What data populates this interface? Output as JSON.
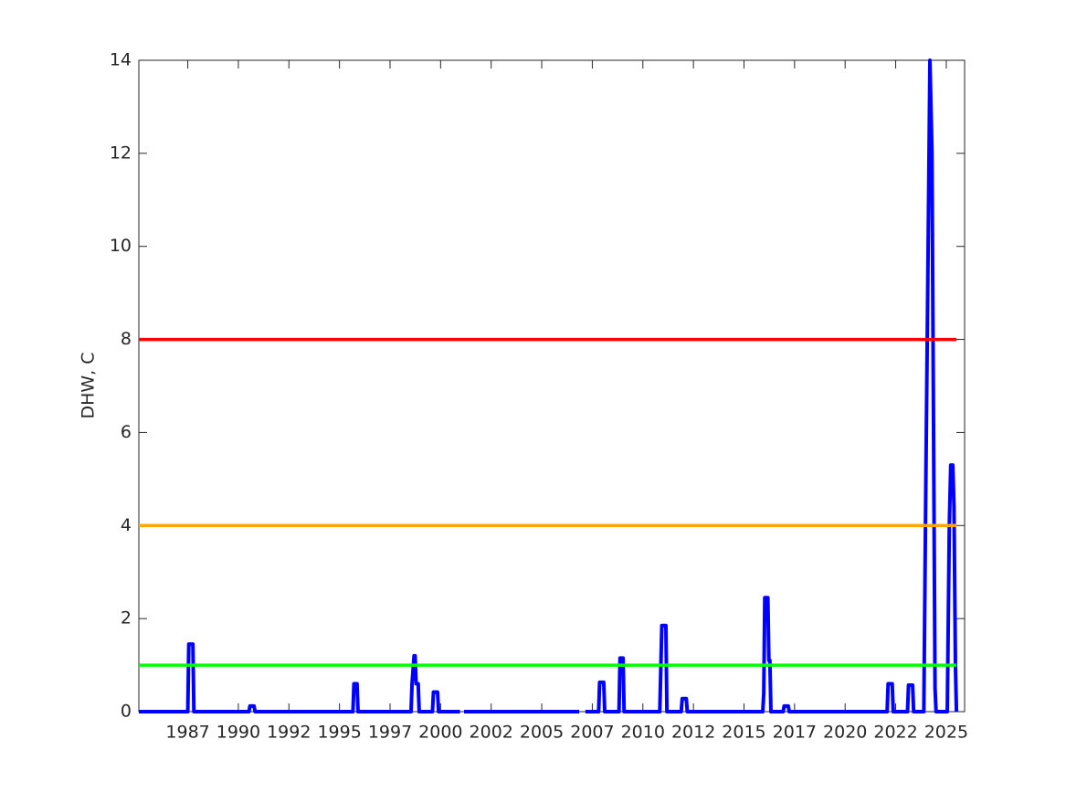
{
  "chart_data": {
    "type": "line",
    "ylabel": "DHW, C",
    "x": [
      1985.0,
      1987.4,
      1987.45,
      1987.65,
      1987.7,
      1990.4,
      1990.45,
      1990.65,
      1990.7,
      1995.5,
      1995.55,
      1995.7,
      1995.75,
      1998.35,
      1998.4,
      1998.5,
      1998.55,
      1998.6,
      1998.7,
      1998.75,
      1999.4,
      1999.45,
      1999.65,
      1999.7,
      2000.75,
      2000.85,
      2000.95,
      2006.6,
      2006.75,
      2006.9,
      2007.55,
      2007.6,
      2007.8,
      2007.85,
      2008.55,
      2008.6,
      2008.75,
      2008.8,
      2010.55,
      2010.65,
      2010.85,
      2010.9,
      2011.6,
      2011.65,
      2011.85,
      2011.9,
      2015.6,
      2015.65,
      2015.7,
      2015.85,
      2015.9,
      2015.95,
      2016.0,
      2016.6,
      2016.65,
      2016.85,
      2016.9,
      2021.7,
      2021.75,
      2021.95,
      2022.0,
      2022.7,
      2022.75,
      2022.95,
      2023.0,
      2023.5,
      2023.6,
      2023.8,
      2023.9,
      2024.05,
      2024.1,
      2024.65,
      2024.75,
      2024.82,
      2024.92,
      2024.98,
      2025.05,
      2025.1
    ],
    "series": [
      {
        "color": "#0000ff",
        "values": [
          0,
          0,
          1.45,
          1.45,
          0,
          0,
          0.12,
          0.12,
          0,
          0,
          0.6,
          0.6,
          0,
          0,
          0.6,
          1.2,
          1.2,
          0.6,
          0.6,
          0,
          0,
          0.42,
          0.42,
          0,
          0,
          null,
          0,
          0,
          null,
          0,
          0,
          0.63,
          0.63,
          0,
          0,
          1.15,
          1.15,
          0,
          0,
          1.85,
          1.85,
          0,
          0,
          0.28,
          0.28,
          0,
          0,
          0.4,
          2.45,
          2.45,
          1.1,
          1.1,
          0,
          0,
          0.12,
          0.12,
          0,
          0,
          0.6,
          0.6,
          0,
          0,
          0.57,
          0.57,
          0,
          0,
          5,
          14,
          12,
          0.5,
          0,
          0,
          4,
          5.3,
          5.3,
          4.4,
          1,
          0
        ]
      }
    ],
    "hlines": [
      {
        "value": 1,
        "color": "#00ff00"
      },
      {
        "value": 4,
        "color": "#ffa500"
      },
      {
        "value": 8,
        "color": "#ff0000"
      }
    ],
    "xlim": [
      1985.0,
      2025.5
    ],
    "xticks": [
      {
        "value": 1987.4,
        "label": "1987"
      },
      {
        "value": 1989.88,
        "label": "1990"
      },
      {
        "value": 1992.36,
        "label": "1992"
      },
      {
        "value": 1994.84,
        "label": "1995"
      },
      {
        "value": 1997.32,
        "label": "1997"
      },
      {
        "value": 1999.8,
        "label": "2000"
      },
      {
        "value": 2002.28,
        "label": "2002"
      },
      {
        "value": 2004.76,
        "label": "2005"
      },
      {
        "value": 2007.24,
        "label": "2007"
      },
      {
        "value": 2009.72,
        "label": "2010"
      },
      {
        "value": 2012.2,
        "label": "2012"
      },
      {
        "value": 2014.68,
        "label": "2015"
      },
      {
        "value": 2017.16,
        "label": "2017"
      },
      {
        "value": 2019.64,
        "label": "2020"
      },
      {
        "value": 2022.12,
        "label": "2022"
      },
      {
        "value": 2024.6,
        "label": "2025"
      }
    ],
    "ylim": [
      0,
      14
    ],
    "yticks": [
      0,
      2,
      4,
      6,
      8,
      10,
      12,
      14
    ],
    "grid": false
  }
}
